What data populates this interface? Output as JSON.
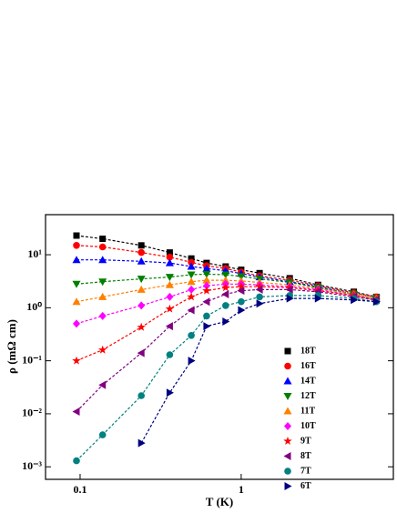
{
  "chart_data": {
    "type": "scatter",
    "xlabel": "T (K)",
    "ylabel": "ρ (mΩ cm)",
    "xscale": "log",
    "yscale": "log",
    "xlim": [
      0.061,
      8.8
    ],
    "ylim": [
      0.00058,
      57
    ],
    "xticks": [
      0.1,
      1
    ],
    "yticks": [
      {
        "value": 0.001,
        "label": "10⁻³"
      },
      {
        "value": 0.01,
        "label": "10⁻²"
      },
      {
        "value": 0.1,
        "label": "10⁻¹"
      },
      {
        "value": 1,
        "label": "10⁰"
      },
      {
        "value": 10,
        "label": "10¹"
      }
    ],
    "legend": "lower right",
    "x": [
      0.095,
      0.138,
      0.24,
      0.36,
      0.49,
      0.61,
      0.8,
      1.0,
      1.3,
      2.0,
      3.0,
      5.0,
      6.9
    ],
    "series": [
      {
        "name": "18T",
        "color": "#000000",
        "marker": "square",
        "values": [
          23,
          20,
          15,
          11,
          8.5,
          7,
          6,
          5.2,
          4.5,
          3.6,
          2.7,
          2.0,
          1.6
        ]
      },
      {
        "name": "16T",
        "color": "#ff0000",
        "marker": "circle",
        "values": [
          15,
          14,
          11,
          9,
          7.2,
          6.2,
          5.5,
          4.7,
          4.0,
          3.3,
          2.6,
          1.9,
          1.6
        ]
      },
      {
        "name": "14T",
        "color": "#0000ff",
        "marker": "triangle-up",
        "values": [
          8,
          8,
          7.5,
          7,
          6,
          5.5,
          5,
          4.4,
          3.8,
          3.1,
          2.5,
          1.8,
          1.5
        ]
      },
      {
        "name": "12T",
        "color": "#008000",
        "marker": "triangle-down",
        "values": [
          2.8,
          3.1,
          3.5,
          3.8,
          4.2,
          4.3,
          4.2,
          3.9,
          3.5,
          3.0,
          2.4,
          1.8,
          1.5
        ]
      },
      {
        "name": "11T",
        "color": "#ff8000",
        "marker": "triangle-up",
        "values": [
          1.3,
          1.6,
          2.2,
          2.7,
          3.1,
          3.3,
          3.3,
          3.2,
          3.0,
          2.7,
          2.3,
          1.8,
          1.5
        ]
      },
      {
        "name": "10T",
        "color": "#ff00ff",
        "marker": "diamond",
        "values": [
          0.5,
          0.7,
          1.1,
          1.6,
          2.2,
          2.6,
          2.8,
          2.8,
          2.7,
          2.5,
          2.2,
          1.7,
          1.4
        ]
      },
      {
        "name": "9T",
        "color": "#ff0000",
        "marker": "star",
        "values": [
          0.1,
          0.16,
          0.43,
          0.95,
          1.6,
          2.1,
          2.4,
          2.5,
          2.5,
          2.4,
          2.1,
          1.7,
          1.4
        ]
      },
      {
        "name": "8T",
        "color": "#800080",
        "marker": "triangle-left",
        "values": [
          0.011,
          0.035,
          0.14,
          0.45,
          0.9,
          1.3,
          1.8,
          2.1,
          2.2,
          2.2,
          2.0,
          1.6,
          1.4
        ]
      },
      {
        "name": "7T",
        "color": "#008080",
        "marker": "circle",
        "values": [
          0.0013,
          0.004,
          0.022,
          0.13,
          0.3,
          0.7,
          1.1,
          1.3,
          1.6,
          1.7,
          1.7,
          1.5,
          1.3
        ]
      },
      {
        "name": "6T",
        "color": "#000080",
        "marker": "triangle-right",
        "values": [
          null,
          null,
          0.0028,
          0.025,
          0.1,
          0.45,
          0.55,
          0.9,
          1.2,
          1.5,
          1.5,
          1.4,
          1.3
        ]
      }
    ]
  }
}
